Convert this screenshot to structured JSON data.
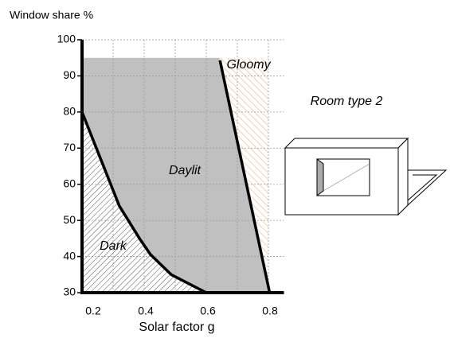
{
  "chart_data": {
    "type": "zone",
    "y_label": "Window share %",
    "x_label": "Solar factor g",
    "xlim": [
      0.2,
      0.85
    ],
    "ylim": [
      30,
      100
    ],
    "xticks": [
      0.2,
      0.4,
      0.6,
      0.8
    ],
    "yticks": [
      30,
      40,
      50,
      60,
      70,
      80,
      90,
      100
    ],
    "grid": true,
    "daylit_top": 95,
    "dark_boundary": {
      "x": [
        0.2,
        0.32,
        0.385,
        0.42,
        0.487,
        0.6
      ],
      "values": [
        80,
        54,
        45,
        40.6,
        35,
        30
      ]
    },
    "gloomy_boundary": {
      "x": [
        0.644,
        0.803
      ],
      "values": [
        94.3,
        30.4
      ]
    },
    "zones": [
      "Dark",
      "Daylit",
      "Gloomy"
    ],
    "room_label": "Room type 2"
  }
}
